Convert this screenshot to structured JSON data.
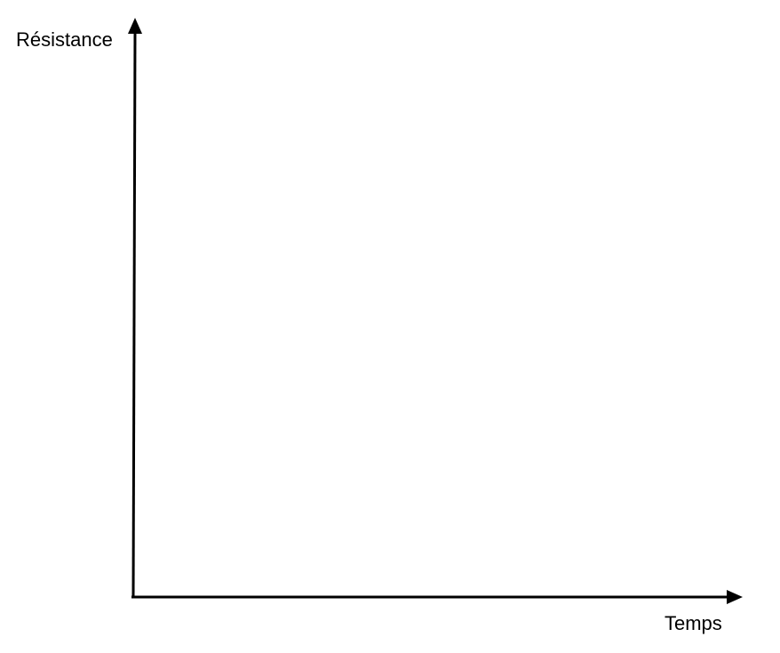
{
  "chart_data": {
    "type": "line",
    "title": "",
    "xlabel": "Temps",
    "ylabel": "Résistance",
    "series": [],
    "grid": false,
    "legend": "none"
  }
}
